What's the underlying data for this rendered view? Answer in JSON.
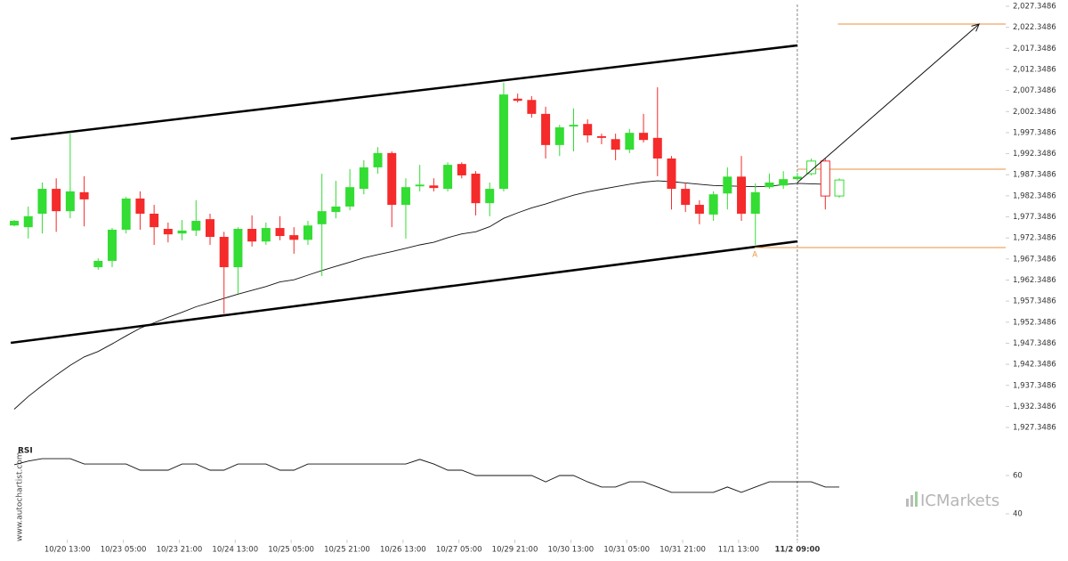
{
  "chart_data": {
    "type": "candlestick",
    "open": [
      1975.3,
      1974.9,
      1978.1,
      1984.0,
      1978.7,
      1983.2,
      1965.4,
      1966.9,
      1974.3,
      1981.7,
      1978.1,
      1974.5,
      1973.4,
      1974.1,
      1976.8,
      1972.6,
      1965.4,
      1974.5,
      1971.5,
      1974.7,
      1973.0,
      1971.9,
      1975.6,
      1978.5,
      1979.8,
      1984.0,
      1989.1,
      1992.5,
      1980.2,
      1984.6,
      1984.8,
      1984.0,
      1989.9,
      1987.6,
      1980.6,
      1984.0,
      2005.4,
      2005.1,
      2001.8,
      1994.4,
      1998.8,
      1999.4,
      1996.5,
      1995.8,
      1993.3,
      1997.3,
      1996.1,
      1991.2,
      1984.0,
      1980.2,
      1977.9,
      1982.9,
      1986.9,
      1978.1,
      1984.4,
      1984.8,
      1986.3,
      1987.6,
      1990.6,
      1982.3
    ],
    "high": [
      1976.6,
      1979.8,
      1985.5,
      1986.5,
      1997.1,
      1987.0,
      1967.5,
      1974.7,
      1982.1,
      1983.4,
      1980.2,
      1976.0,
      1976.6,
      1981.3,
      1978.1,
      1973.8,
      1974.9,
      1977.7,
      1976.0,
      1977.5,
      1974.9,
      1976.4,
      1987.6,
      1985.9,
      1988.7,
      1990.8,
      1993.9,
      1992.9,
      1986.5,
      1989.7,
      1986.5,
      1990.3,
      1990.3,
      1988.2,
      1985.5,
      2009.2,
      2006.6,
      2006.0,
      2003.5,
      1999.2,
      2003.1,
      2000.5,
      1997.1,
      1997.1,
      1998.2,
      2001.8,
      2008.1,
      1991.8,
      1985.5,
      1981.3,
      1983.4,
      1989.1,
      1991.8,
      1985.3,
      1987.6,
      1988.2,
      1987.8,
      1991.2,
      1991.2,
      1986.5
    ],
    "low": [
      1975.1,
      1972.2,
      1973.4,
      1973.8,
      1977.0,
      1975.1,
      1964.8,
      1965.4,
      1973.4,
      1974.3,
      1970.7,
      1971.3,
      1971.8,
      1972.8,
      1970.7,
      1954.4,
      1959.1,
      1970.3,
      1970.7,
      1971.8,
      1968.6,
      1970.7,
      1963.3,
      1977.0,
      1978.9,
      1982.7,
      1987.6,
      1974.9,
      1972.2,
      1983.4,
      1983.4,
      1983.4,
      1986.5,
      1977.7,
      1977.5,
      1983.4,
      2004.5,
      2000.9,
      1991.2,
      1991.8,
      1992.9,
      1995.0,
      1994.6,
      1990.8,
      1992.5,
      1995.0,
      1987.0,
      1979.1,
      1978.5,
      1975.6,
      1976.4,
      1979.1,
      1976.4,
      1970.7,
      1984.0,
      1984.0,
      1986.3,
      1987.2,
      1979.1,
      1981.9
    ],
    "close": [
      1976.4,
      1977.5,
      1984.0,
      1978.7,
      1983.4,
      1981.5,
      1966.9,
      1974.3,
      1981.7,
      1978.1,
      1974.9,
      1973.2,
      1974.1,
      1976.4,
      1972.6,
      1965.4,
      1974.5,
      1971.5,
      1974.7,
      1972.8,
      1971.9,
      1975.3,
      1978.7,
      1979.8,
      1984.4,
      1989.1,
      1992.5,
      1980.2,
      1984.4,
      1985.0,
      1984.2,
      1989.7,
      1987.2,
      1980.6,
      1984.0,
      2006.4,
      2004.9,
      2001.8,
      1994.4,
      1998.6,
      1999.2,
      1996.7,
      1996.1,
      1993.3,
      1997.3,
      1995.6,
      1991.2,
      1984.0,
      1980.2,
      1978.1,
      1982.7,
      1986.9,
      1978.1,
      1983.2,
      1985.5,
      1986.3,
      1986.9,
      1990.6,
      1982.3,
      1986.1
    ],
    "forecast_start": 57,
    "up_color": "#33dd33",
    "down_color": "#f52a2a",
    "moving_average": [
      1931.7,
      1934.7,
      1937.3,
      1939.8,
      1942.1,
      1944.1,
      1945.4,
      1947.2,
      1949.1,
      1950.9,
      1952.2,
      1953.5,
      1954.7,
      1956.0,
      1957.0,
      1958.0,
      1959.0,
      1959.9,
      1960.8,
      1961.9,
      1962.4,
      1963.5,
      1964.6,
      1965.6,
      1966.6,
      1967.6,
      1968.4,
      1969.1,
      1969.9,
      1970.7,
      1971.3,
      1972.4,
      1973.3,
      1973.8,
      1975.0,
      1977.0,
      1978.3,
      1979.5,
      1980.4,
      1981.5,
      1982.5,
      1983.3,
      1983.9,
      1984.5,
      1985.1,
      1985.6,
      1985.9,
      1985.7,
      1985.4,
      1985.1,
      1984.8,
      1984.7,
      1984.6,
      1984.5,
      1984.6,
      1985.0,
      1985.3,
      1985.2,
      1985.1,
      null
    ],
    "xlim": [
      -1.02,
      70.9
    ],
    "ylim": [
      1924.19,
      2028.83
    ],
    "yticks": [
      {
        "value": 2027.3486,
        "label": "2,027.3486"
      },
      {
        "value": 2022.3486,
        "label": "2,022.3486"
      },
      {
        "value": 2017.3486,
        "label": "2,017.3486"
      },
      {
        "value": 2012.3486,
        "label": "2,012.3486"
      },
      {
        "value": 2007.3486,
        "label": "2,007.3486"
      },
      {
        "value": 2002.3486,
        "label": "2,002.3486"
      },
      {
        "value": 1997.3486,
        "label": "1,997.3486"
      },
      {
        "value": 1992.3486,
        "label": "1,992.3486"
      },
      {
        "value": 1987.3486,
        "label": "1,987.3486"
      },
      {
        "value": 1982.3486,
        "label": "1,982.3486"
      },
      {
        "value": 1977.3486,
        "label": "1,977.3486"
      },
      {
        "value": 1972.3486,
        "label": "1,972.3486"
      },
      {
        "value": 1967.3486,
        "label": "1,967.3486"
      },
      {
        "value": 1962.3486,
        "label": "1,962.3486"
      },
      {
        "value": 1957.3486,
        "label": "1,957.3486"
      },
      {
        "value": 1952.3486,
        "label": "1,952.3486"
      },
      {
        "value": 1947.3486,
        "label": "1,947.3486"
      },
      {
        "value": 1942.3486,
        "label": "1,942.3486"
      },
      {
        "value": 1937.3486,
        "label": "1,937.3486"
      },
      {
        "value": 1932.3486,
        "label": "1,932.3486"
      },
      {
        "value": 1927.3486,
        "label": "1,927.3486"
      }
    ],
    "xticks": [
      {
        "value": 3.8,
        "label": "10/20 13:00"
      },
      {
        "value": 7.8,
        "label": "10/23 05:00"
      },
      {
        "value": 11.8,
        "label": "10/23 21:00"
      },
      {
        "value": 15.8,
        "label": "10/24 13:00"
      },
      {
        "value": 19.8,
        "label": "10/25 05:00"
      },
      {
        "value": 23.8,
        "label": "10/25 21:00"
      },
      {
        "value": 27.8,
        "label": "10/26 13:00"
      },
      {
        "value": 31.8,
        "label": "10/27 05:00"
      },
      {
        "value": 35.8,
        "label": "10/29 21:00"
      },
      {
        "value": 39.8,
        "label": "10/30 13:00"
      },
      {
        "value": 43.8,
        "label": "10/31 05:00"
      },
      {
        "value": 47.8,
        "label": "10/31 21:00"
      },
      {
        "value": 51.8,
        "label": "11/1 13:00"
      },
      {
        "value": 56,
        "label": "11/2 09:00",
        "bold": true
      }
    ],
    "now_line": 56,
    "channel": [
      {
        "x": [
          -0.25,
          56
        ],
        "y": [
          1995.85,
          2018.05
        ]
      },
      {
        "x": [
          -0.25,
          56
        ],
        "y": [
          1947.44,
          1971.53
        ]
      }
    ],
    "target_arrow": {
      "x": [
        56,
        69.0
      ],
      "y": [
        1985.49,
        2023.12
      ]
    },
    "levels": [
      {
        "x_start": 58.9,
        "value": 2023.12
      },
      {
        "x_start": 56,
        "value": 1988.66
      },
      {
        "x_start": 52.96,
        "value": 1970.06,
        "label": "A"
      }
    ],
    "level_color": "#e8913c",
    "rsi": {
      "label": "RSI",
      "values": [
        65.6,
        67.5,
        68.8,
        68.8,
        68.8,
        66.0,
        66.0,
        66.0,
        66.0,
        62.8,
        62.8,
        62.8,
        66.0,
        66.0,
        62.8,
        62.8,
        66.0,
        66.0,
        66.0,
        62.8,
        62.8,
        66.0,
        66.0,
        66.0,
        66.0,
        66.0,
        66.0,
        66.0,
        66.0,
        68.4,
        66.0,
        62.8,
        62.8,
        60.0,
        60.0,
        60.0,
        60.0,
        60.0,
        56.7,
        60.0,
        60.0,
        56.7,
        54.0,
        54.0,
        56.7,
        56.7,
        54.0,
        51.2,
        51.2,
        51.2,
        51.2,
        54.0,
        51.2,
        54.0,
        56.7,
        56.7,
        56.7,
        56.7,
        54.0,
        54.0
      ],
      "ylim": [
        29.3,
        75.8
      ],
      "yticks": [
        60,
        40
      ]
    },
    "watermark": "www.autochartist.com",
    "brand": "ICMarkets"
  }
}
